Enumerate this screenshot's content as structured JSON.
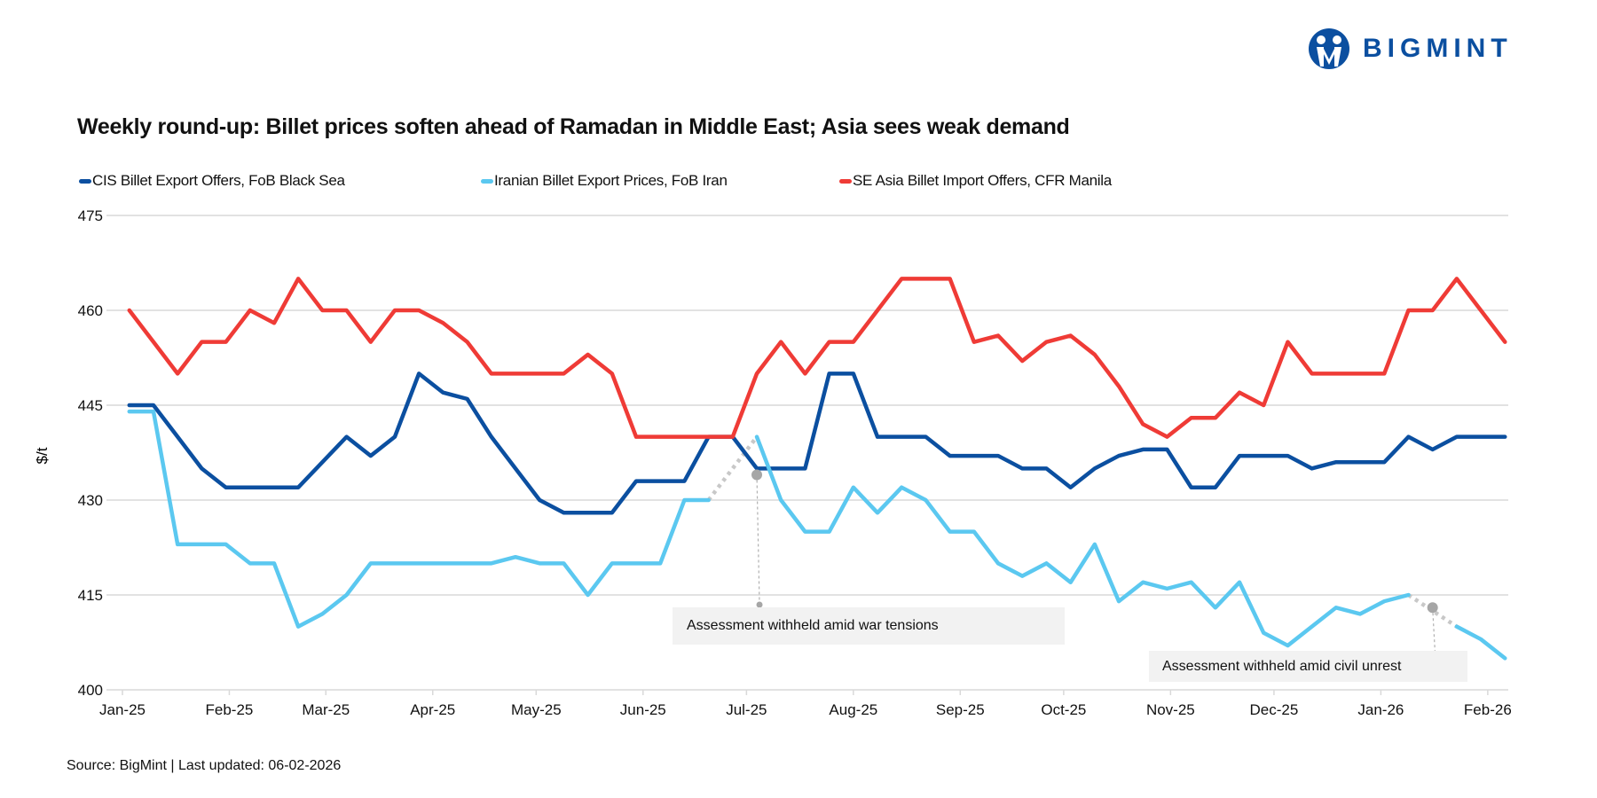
{
  "brand": {
    "logo_text": "BIGMINT",
    "color": "#0b4fa0"
  },
  "source": "Source: BigMint | Last updated: 06-02-2026",
  "chart_data": {
    "type": "line",
    "title": "Weekly round-up: Billet prices soften ahead of Ramadan in Middle East; Asia sees weak demand",
    "xlabel": "",
    "ylabel": "$/t",
    "ylim": [
      400,
      475
    ],
    "yticks": [
      400,
      415,
      430,
      445,
      460,
      475
    ],
    "xticks": [
      "Jan-25",
      "Feb-25",
      "Mar-25",
      "Apr-25",
      "May-25",
      "Jun-25",
      "Jul-25",
      "Aug-25",
      "Sep-25",
      "Oct-25",
      "Nov-25",
      "Dec-25",
      "Jan-26",
      "Feb-26"
    ],
    "xtick_dates": [
      "2025-01-01",
      "2025-02-01",
      "2025-03-01",
      "2025-04-01",
      "2025-05-01",
      "2025-06-01",
      "2025-07-01",
      "2025-08-01",
      "2025-09-01",
      "2025-10-01",
      "2025-11-01",
      "2025-12-01",
      "2026-01-01",
      "2026-02-01"
    ],
    "grid": "horizontal",
    "legend": "top",
    "x": [
      "2025-01-03",
      "2025-01-10",
      "2025-01-17",
      "2025-01-24",
      "2025-01-31",
      "2025-02-07",
      "2025-02-14",
      "2025-02-21",
      "2025-02-28",
      "2025-03-07",
      "2025-03-14",
      "2025-03-21",
      "2025-03-28",
      "2025-04-04",
      "2025-04-11",
      "2025-04-18",
      "2025-04-25",
      "2025-05-02",
      "2025-05-09",
      "2025-05-16",
      "2025-05-23",
      "2025-05-30",
      "2025-06-06",
      "2025-06-13",
      "2025-06-20",
      "2025-06-27",
      "2025-07-04",
      "2025-07-11",
      "2025-07-18",
      "2025-07-25",
      "2025-08-01",
      "2025-08-08",
      "2025-08-15",
      "2025-08-22",
      "2025-08-29",
      "2025-09-05",
      "2025-09-12",
      "2025-09-19",
      "2025-09-26",
      "2025-10-03",
      "2025-10-10",
      "2025-10-17",
      "2025-10-24",
      "2025-10-31",
      "2025-11-07",
      "2025-11-14",
      "2025-11-21",
      "2025-11-28",
      "2025-12-05",
      "2025-12-12",
      "2025-12-19",
      "2025-12-26",
      "2026-01-02",
      "2026-01-09",
      "2026-01-16",
      "2026-01-23",
      "2026-01-30",
      "2026-02-06"
    ],
    "series": [
      {
        "name": "CIS Billet Export Offers, FoB Black Sea",
        "color": "#0b4fa0",
        "values": [
          445,
          445,
          440,
          435,
          432,
          432,
          432,
          432,
          436,
          440,
          437,
          440,
          450,
          447,
          446,
          440,
          435,
          430,
          428,
          428,
          428,
          433,
          433,
          433,
          440,
          440,
          435,
          435,
          435,
          450,
          450,
          440,
          440,
          440,
          437,
          437,
          437,
          435,
          435,
          432,
          435,
          437,
          438,
          438,
          432,
          432,
          437,
          437,
          437,
          435,
          436,
          436,
          436,
          440,
          438,
          440,
          440,
          440
        ]
      },
      {
        "name": "Iranian Billet Export Prices, FoB Iran",
        "color": "#5bc8f0",
        "values": [
          444,
          444,
          423,
          423,
          423,
          420,
          420,
          410,
          412,
          415,
          420,
          420,
          420,
          420,
          420,
          420,
          421,
          420,
          420,
          415,
          420,
          420,
          420,
          430,
          430,
          null,
          440,
          430,
          425,
          425,
          432,
          428,
          432,
          430,
          425,
          425,
          420,
          418,
          420,
          417,
          423,
          414,
          417,
          416,
          417,
          413,
          417,
          409,
          407,
          410,
          413,
          412,
          414,
          415,
          null,
          410,
          408,
          405
        ]
      },
      {
        "name": "SE Asia Billet Import Offers, CFR Manila",
        "color": "#ef3b36",
        "values": [
          460,
          455,
          450,
          455,
          455,
          460,
          458,
          465,
          460,
          460,
          455,
          460,
          460,
          458,
          455,
          450,
          450,
          450,
          450,
          453,
          450,
          440,
          440,
          440,
          440,
          440,
          450,
          455,
          450,
          455,
          455,
          460,
          465,
          465,
          465,
          455,
          456,
          452,
          455,
          456,
          453,
          448,
          442,
          440,
          443,
          443,
          447,
          445,
          455,
          450,
          450,
          450,
          450,
          460,
          460,
          465,
          460,
          455
        ]
      }
    ],
    "gap_style": "dotted",
    "gap_color": "#c8c8c8",
    "annotations": [
      {
        "text": "Assessment withheld amid  war tensions",
        "x": "2025-07-04",
        "y": 434
      },
      {
        "text": "Assessment withheld amid civil unrest",
        "x": "2026-01-16",
        "y": 413
      }
    ]
  }
}
